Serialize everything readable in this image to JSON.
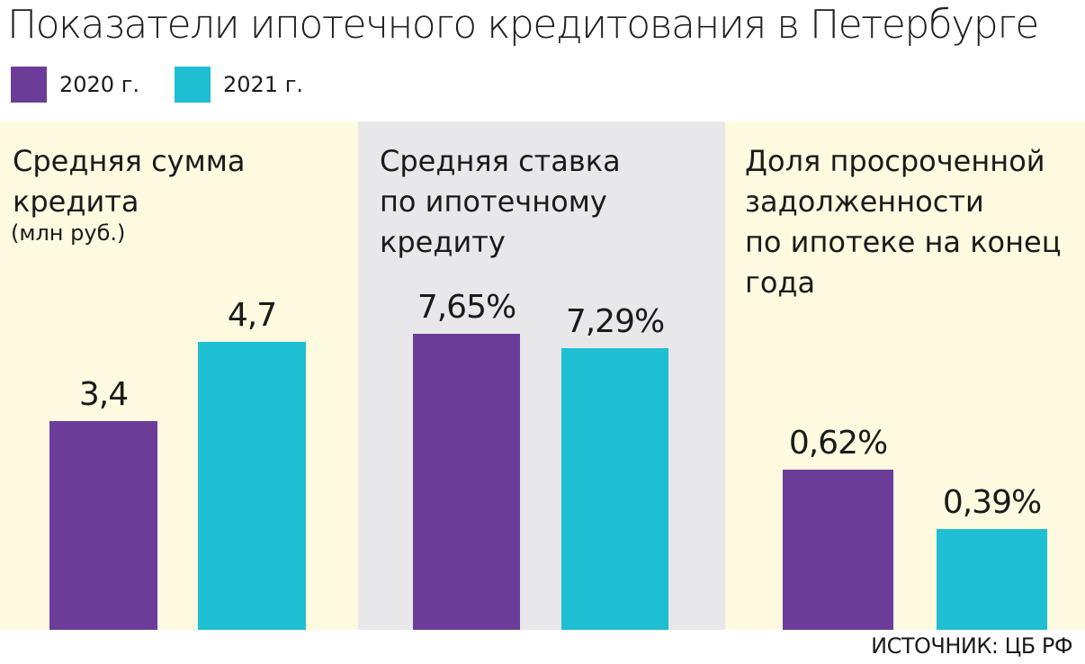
{
  "title": "Показатели ипотечного кредитования в Петербурге",
  "source": "ИСТОЧНИК: ЦБ РФ",
  "colors": {
    "series_2020": "#6b3d99",
    "series_2021": "#1ebfd2",
    "panel_yellow": "#fdfae0",
    "panel_grey": "#e8e8ea"
  },
  "legend": [
    {
      "label": "2020 г.",
      "color": "#6b3d99"
    },
    {
      "label": "2021 г.",
      "color": "#1ebfd2"
    }
  ],
  "panels": [
    {
      "title": "Средняя сумма\nкредита",
      "unit": "(млн руб.)"
    },
    {
      "title": "Средняя ставка\nпо ипотечному\nкредиту",
      "unit": ""
    },
    {
      "title": "Доля просроченной\nзадолженности\nпо ипотеке на конец\nгода",
      "unit": ""
    }
  ],
  "chart_data": [
    {
      "type": "bar",
      "title": "Средняя сумма кредита",
      "unit": "млн руб.",
      "series": [
        {
          "name": "2020 г.",
          "values": [
            3.4
          ]
        },
        {
          "name": "2021 г.",
          "values": [
            4.7
          ]
        }
      ],
      "data_labels": [
        "3,4",
        "4,7"
      ]
    },
    {
      "type": "bar",
      "title": "Средняя ставка по ипотечному кредиту",
      "unit": "%",
      "series": [
        {
          "name": "2020 г.",
          "values": [
            7.65
          ]
        },
        {
          "name": "2021 г.",
          "values": [
            7.29
          ]
        }
      ],
      "data_labels": [
        "7,65%",
        "7,29%"
      ]
    },
    {
      "type": "bar",
      "title": "Доля просроченной задолженности по ипотеке на конец года",
      "unit": "%",
      "series": [
        {
          "name": "2020 г.",
          "values": [
            0.62
          ]
        },
        {
          "name": "2021 г.",
          "values": [
            0.39
          ]
        }
      ],
      "data_labels": [
        "0,62%",
        "0,39%"
      ]
    }
  ]
}
